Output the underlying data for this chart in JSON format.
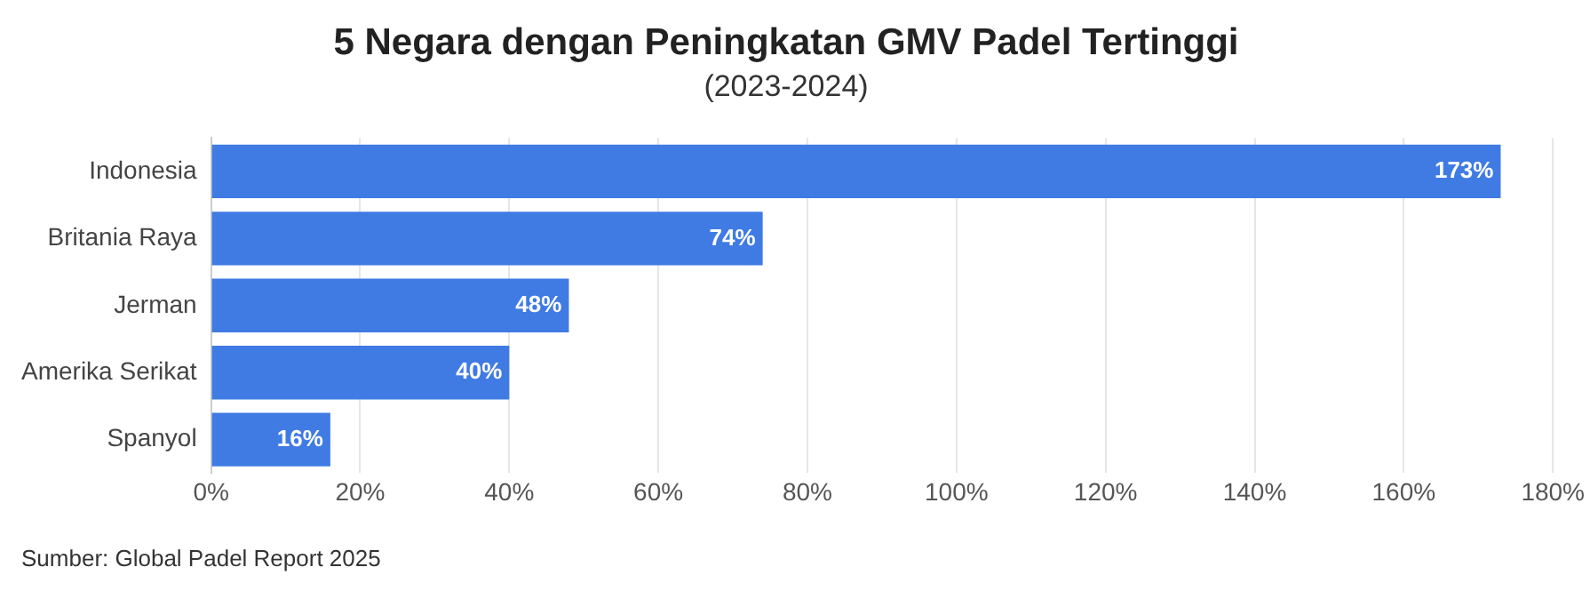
{
  "chart_data": {
    "type": "bar",
    "orientation": "horizontal",
    "title": "5 Negara dengan Peningkatan GMV Padel Tertinggi",
    "subtitle": "(2023-2024)",
    "categories": [
      "Indonesia",
      "Britania Raya",
      "Jerman",
      "Amerika Serikat",
      "Spanyol"
    ],
    "values": [
      173,
      74,
      48,
      40,
      16
    ],
    "value_labels": [
      "173%",
      "74%",
      "48%",
      "40%",
      "16%"
    ],
    "color": "#3f7be3",
    "xlim": [
      0,
      180
    ],
    "xticks": [
      {
        "value": 0,
        "label": "0%"
      },
      {
        "value": 20,
        "label": "20%"
      },
      {
        "value": 40,
        "label": "40%"
      },
      {
        "value": 60,
        "label": "60%"
      },
      {
        "value": 80,
        "label": "80%"
      },
      {
        "value": 100,
        "label": "100%"
      },
      {
        "value": 120,
        "label": "120%"
      },
      {
        "value": 140,
        "label": "140%"
      },
      {
        "value": 160,
        "label": "160%"
      },
      {
        "value": 180,
        "label": "180%"
      }
    ],
    "grid": "x",
    "legend": false,
    "annotations": [
      "Sumber: Global Padel Report 2025"
    ]
  }
}
